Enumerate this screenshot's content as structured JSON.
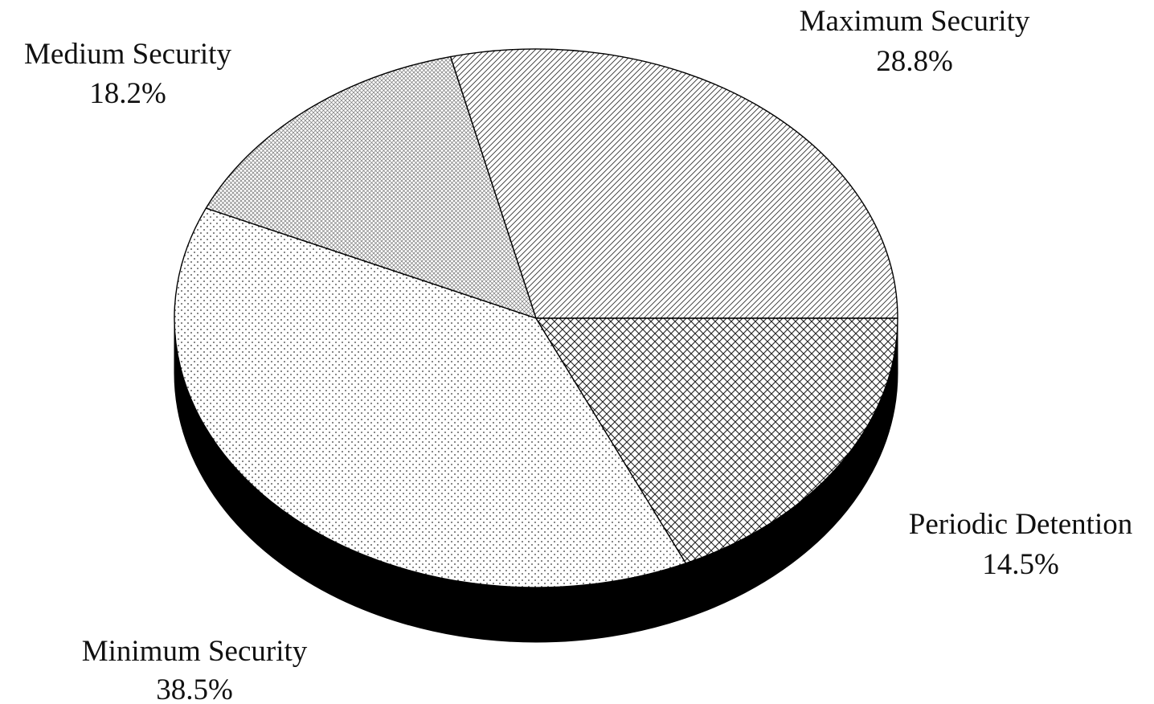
{
  "chart_data": {
    "type": "pie",
    "style": "3d",
    "slices": [
      {
        "name": "Maximum Security",
        "value": 28.8,
        "label": "28.8%",
        "pattern": "diagonal-hatch"
      },
      {
        "name": "Periodic Detention",
        "value": 14.5,
        "label": "14.5%",
        "pattern": "fine-crosshatch"
      },
      {
        "name": "Minimum Security",
        "value": 38.5,
        "label": "38.5%",
        "pattern": "dots"
      },
      {
        "name": "Medium Security",
        "value": 18.2,
        "label": "18.2%",
        "pattern": "diamond-crosshatch"
      }
    ],
    "colors": {
      "outline": "#000000",
      "side": "#000000",
      "background": "#ffffff"
    }
  }
}
